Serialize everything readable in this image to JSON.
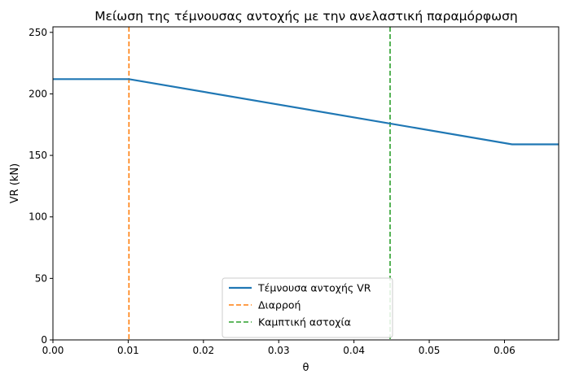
{
  "chart_data": {
    "type": "line",
    "title": "Μείωση της τέμνουσας αντοχής με την ανελαστική παραμόρφωση",
    "xlabel": "θ",
    "ylabel": "VR (kN)",
    "xlim": [
      0,
      0.0672
    ],
    "ylim": [
      0,
      254.5
    ],
    "xticks": [
      0.0,
      0.01,
      0.02,
      0.03,
      0.04,
      0.05,
      0.06
    ],
    "xtick_labels": [
      "0.00",
      "0.01",
      "0.02",
      "0.03",
      "0.04",
      "0.05",
      "0.06"
    ],
    "yticks": [
      0,
      50,
      100,
      150,
      200,
      250
    ],
    "ytick_labels": [
      "0",
      "50",
      "100",
      "150",
      "200",
      "250"
    ],
    "grid": false,
    "legend_position": "bottom-center",
    "series": [
      {
        "name": "Τέμνουσα αντοχής VR",
        "color": "#1f77b4",
        "style": "solid",
        "x": [
          0.0,
          0.0101,
          0.061,
          0.0672
        ],
        "y": [
          212,
          212,
          159,
          159
        ]
      }
    ],
    "vlines": [
      {
        "name": "Διαρροή",
        "x": 0.0101,
        "color": "#ff7f0e",
        "style": "dashed"
      },
      {
        "name": "Καμπτική αστοχία",
        "x": 0.0448,
        "color": "#2ca02c",
        "style": "dashed"
      }
    ]
  }
}
